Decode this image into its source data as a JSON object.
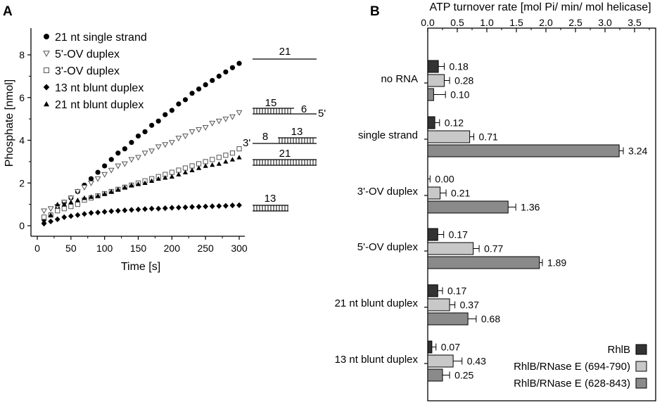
{
  "chart_data": [
    {
      "panel": "A",
      "type": "scatter",
      "xlabel": "Time [s]",
      "ylabel": "Phosphate [nmol]",
      "xlim": [
        0,
        320
      ],
      "ylim": [
        -0.5,
        8.8
      ],
      "xticks": [
        0,
        50,
        100,
        150,
        200,
        250,
        300
      ],
      "yticks": [
        0,
        2,
        4,
        6,
        8
      ],
      "legend": "top-left",
      "series": [
        {
          "name": "21 nt single strand",
          "marker": "circle",
          "t0": 10,
          "dt": 10,
          "n": 30,
          "values": [
            0.3,
            0.5,
            0.8,
            1.1,
            1.3,
            1.6,
            1.9,
            2.2,
            2.5,
            2.8,
            3.1,
            3.4,
            3.6,
            3.9,
            4.2,
            4.4,
            4.7,
            4.9,
            5.2,
            5.4,
            5.7,
            5.9,
            6.2,
            6.4,
            6.6,
            6.8,
            7.0,
            7.2,
            7.4,
            7.6
          ]
        },
        {
          "name": "5'-OV duplex",
          "marker": "triangle-down-open",
          "t0": 10,
          "dt": 10,
          "n": 30,
          "values": [
            0.7,
            0.8,
            0.9,
            1.1,
            1.3,
            1.6,
            1.8,
            2.0,
            2.2,
            2.4,
            2.6,
            2.8,
            2.9,
            3.1,
            3.2,
            3.4,
            3.5,
            3.7,
            3.8,
            3.9,
            4.1,
            4.2,
            4.4,
            4.5,
            4.6,
            4.8,
            4.9,
            5.0,
            5.1,
            5.3
          ]
        },
        {
          "name": "3'-OV duplex",
          "marker": "square-open",
          "t0": 10,
          "dt": 10,
          "n": 30,
          "values": [
            0.4,
            0.5,
            0.7,
            0.8,
            0.9,
            1.0,
            1.2,
            1.3,
            1.4,
            1.5,
            1.6,
            1.7,
            1.8,
            1.9,
            2.0,
            2.1,
            2.2,
            2.3,
            2.4,
            2.5,
            2.6,
            2.7,
            2.8,
            2.9,
            3.0,
            3.1,
            3.2,
            3.3,
            3.4,
            3.6
          ]
        },
        {
          "name": "13 nt blunt duplex",
          "marker": "diamond",
          "t0": 10,
          "dt": 10,
          "n": 30,
          "values": [
            0.1,
            0.2,
            0.3,
            0.4,
            0.45,
            0.5,
            0.55,
            0.6,
            0.62,
            0.65,
            0.68,
            0.7,
            0.72,
            0.74,
            0.76,
            0.78,
            0.8,
            0.8,
            0.82,
            0.84,
            0.85,
            0.86,
            0.88,
            0.89,
            0.9,
            0.91,
            0.92,
            0.93,
            0.95,
            0.96
          ]
        },
        {
          "name": "21 nt blunt duplex",
          "marker": "triangle-up",
          "t0": 10,
          "dt": 10,
          "n": 30,
          "values": [
            0.2,
            0.5,
            1.0,
            1.0,
            1.1,
            1.2,
            1.3,
            1.35,
            1.4,
            1.5,
            1.6,
            1.7,
            1.8,
            1.9,
            1.95,
            2.0,
            2.1,
            2.2,
            2.25,
            2.3,
            2.4,
            2.5,
            2.6,
            2.7,
            2.8,
            2.85,
            2.9,
            3.0,
            3.1,
            3.2
          ]
        }
      ],
      "substrate_labels": [
        "21",
        "15",
        "6",
        "5'",
        "3'",
        "8",
        "13",
        "21",
        "13"
      ]
    },
    {
      "panel": "B",
      "type": "bar",
      "orientation": "horizontal",
      "xlabel": "ATP turnover rate [mol Pi/ min/ mol helicase]",
      "xlim": [
        0,
        3.7
      ],
      "xticks": [
        0.0,
        0.5,
        1.0,
        1.5,
        2.0,
        2.5,
        3.0,
        3.5
      ],
      "xtick_labels": [
        "0.0",
        "0.5",
        "1.0",
        "1.5",
        "2.0",
        "2.5",
        "3.0",
        "3.5"
      ],
      "legend": "bottom-right",
      "categories": [
        "no RNA",
        "single strand",
        "3'-OV duplex",
        "5'-OV duplex",
        "21 nt blunt duplex",
        "13 nt blunt duplex"
      ],
      "series": [
        {
          "name": "RhlB",
          "color": "#333333",
          "values": [
            0.18,
            0.12,
            0.0,
            0.17,
            0.17,
            0.07
          ],
          "labels": [
            "0.18",
            "0.12",
            "0.00",
            "0.17",
            "0.17",
            "0.07"
          ],
          "errors": [
            0.1,
            0.08,
            0.04,
            0.1,
            0.08,
            0.07
          ]
        },
        {
          "name": "RhlB/RNase E (694-790)",
          "color": "#c8c8c8",
          "values": [
            0.28,
            0.71,
            0.21,
            0.77,
            0.37,
            0.43
          ],
          "labels": [
            "0.28",
            "0.71",
            "0.21",
            "0.77",
            "0.37",
            "0.43"
          ],
          "errors": [
            0.09,
            0.07,
            0.1,
            0.1,
            0.09,
            0.15
          ]
        },
        {
          "name": "RhlB/RNase E (628-843)",
          "color": "#8a8a8a",
          "values": [
            0.1,
            3.24,
            1.36,
            1.89,
            0.68,
            0.25
          ],
          "labels": [
            "0.10",
            "3.24",
            "1.36",
            "1.89",
            "0.68",
            "0.25"
          ],
          "errors": [
            0.2,
            0.07,
            0.13,
            0.05,
            0.14,
            0.12
          ]
        }
      ]
    }
  ],
  "panels": {
    "a_label": "A",
    "b_label": "B"
  }
}
